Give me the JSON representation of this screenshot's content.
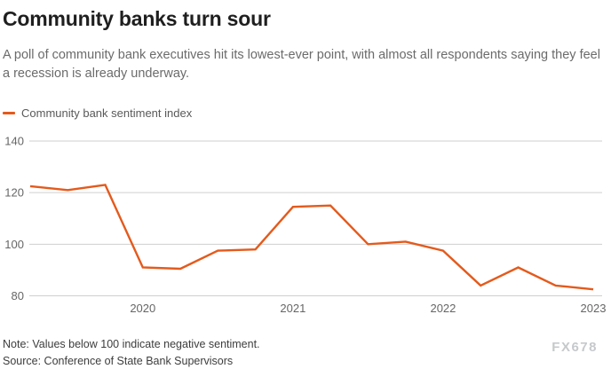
{
  "header": {
    "title": "Community banks turn sour",
    "subtitle": "A poll of community bank executives hit its lowest-ever point, with almost all respondents saying they feel a recession is already underway."
  },
  "legend": {
    "label": "Community bank sentiment index"
  },
  "chart_data": {
    "type": "line",
    "title": "Community banks turn sour",
    "series": [
      {
        "name": "Community bank sentiment index",
        "color": "#e45a1c",
        "x": [
          "2019 Q2",
          "2019 Q3",
          "2019 Q4",
          "2020 Q1",
          "2020 Q2",
          "2020 Q3",
          "2020 Q4",
          "2021 Q1",
          "2021 Q2",
          "2021 Q3",
          "2021 Q4",
          "2022 Q1",
          "2022 Q2",
          "2022 Q3",
          "2022 Q4",
          "2023 Q1"
        ],
        "values": [
          122.5,
          121,
          123,
          91,
          90.5,
          97.5,
          98,
          114.5,
          115,
          100,
          101,
          97.5,
          84,
          91,
          84,
          82.5
        ]
      }
    ],
    "x_tick_labels": [
      "2020",
      "2021",
      "2022",
      "2023"
    ],
    "x_tick_indices": [
      3,
      7,
      11,
      15
    ],
    "yticks": [
      80,
      100,
      120,
      140
    ],
    "ylim": [
      80,
      140
    ],
    "grid": "horizontal",
    "legend_position": "top-left",
    "colors": {
      "line": "#e45a1c",
      "grid": "#cfcfcf",
      "axis_text": "#666666"
    }
  },
  "footer": {
    "note": "Note: Values below 100 indicate negative sentiment.",
    "source": "Source: Conference of State Bank Supervisors",
    "watermark": "FX678"
  }
}
